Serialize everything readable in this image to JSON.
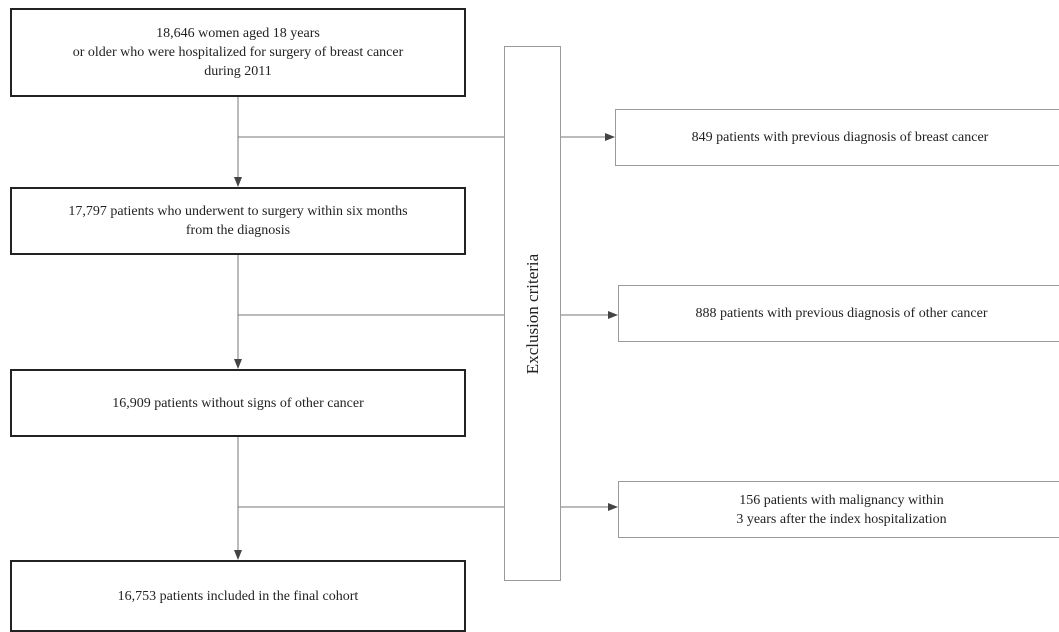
{
  "flow_boxes": [
    {
      "text": "18,646 women aged 18 years\nor older who were hospitalized for surgery of breast cancer\nduring 2011"
    },
    {
      "text": "17,797 patients who underwent to surgery within six months\nfrom the diagnosis"
    },
    {
      "text": "16,909 patients without signs of other cancer"
    },
    {
      "text": "16,753 patients included in the final cohort"
    }
  ],
  "exclusion": {
    "label": "Exclusion criteria",
    "items": [
      {
        "text": "849 patients with previous diagnosis of breast cancer"
      },
      {
        "text": "888 patients with previous diagnosis of other cancer"
      },
      {
        "text": "156 patients with malignancy within\n3 years after the index hospitalization"
      }
    ]
  },
  "colors": {
    "main_border": "#222222",
    "side_border": "#9a9a9a",
    "connector": "#777777"
  }
}
